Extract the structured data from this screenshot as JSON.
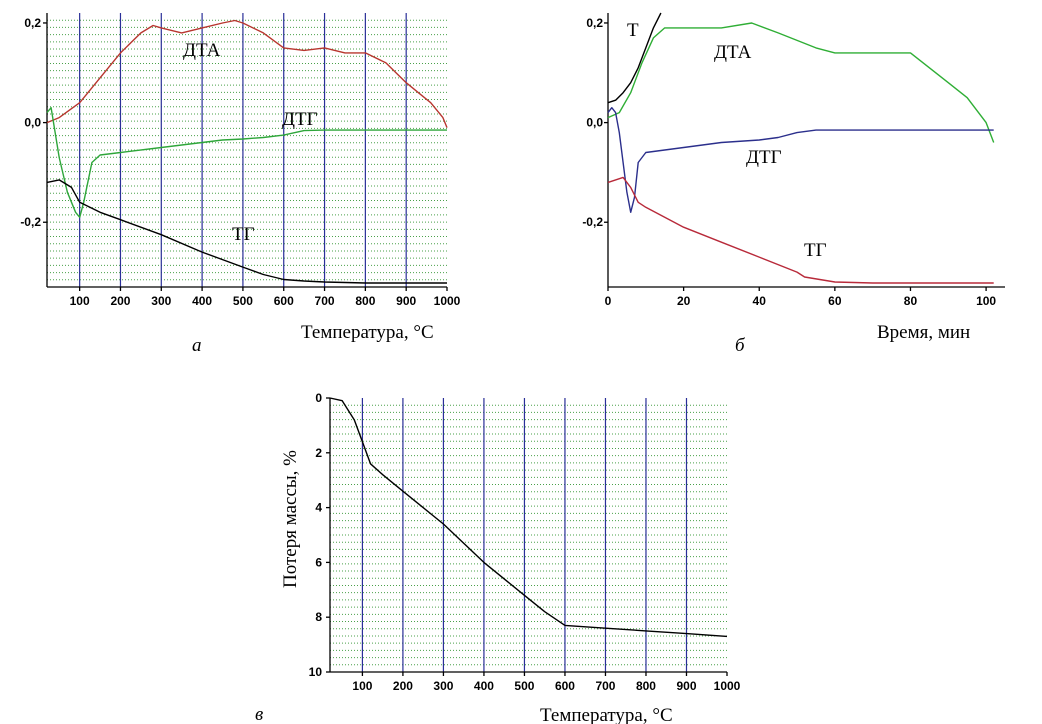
{
  "colors": {
    "dta_a": "#b8362f",
    "dtg_a": "#2ea63a",
    "tg_a": "#000000",
    "t_b": "#000000",
    "dta_b": "#2fae35",
    "dtg_b": "#2b2f8c",
    "tg_b": "#b82a3a",
    "tg_c": "#000000"
  },
  "chart_data": [
    {
      "panel": "а",
      "type": "line",
      "xlabel": "Температура, °C",
      "ylabel": "",
      "xlim": [
        20,
        1000
      ],
      "ylim": [
        -0.33,
        0.22
      ],
      "xticks": [
        "100",
        "200",
        "300",
        "400",
        "500",
        "600",
        "700",
        "800",
        "900",
        "1000"
      ],
      "yticks": [
        "0,2",
        "0,0",
        "-0,2"
      ],
      "grid": true,
      "series": [
        {
          "name": "ДТА",
          "color_key": "dta_a",
          "x": [
            20,
            50,
            100,
            150,
            200,
            250,
            280,
            300,
            350,
            400,
            450,
            480,
            500,
            550,
            600,
            650,
            700,
            750,
            800,
            850,
            900,
            930,
            960,
            990,
            1000
          ],
          "y": [
            0.0,
            0.01,
            0.04,
            0.09,
            0.14,
            0.18,
            0.195,
            0.19,
            0.18,
            0.19,
            0.2,
            0.205,
            0.2,
            0.18,
            0.15,
            0.145,
            0.15,
            0.14,
            0.14,
            0.12,
            0.08,
            0.06,
            0.04,
            0.01,
            -0.01
          ]
        },
        {
          "name": "ДТГ",
          "color_key": "dtg_a",
          "x": [
            20,
            30,
            50,
            70,
            90,
            100,
            110,
            130,
            150,
            200,
            300,
            400,
            450,
            500,
            550,
            600,
            650,
            700,
            800,
            900,
            1000
          ],
          "y": [
            0.02,
            0.03,
            -0.07,
            -0.14,
            -0.18,
            -0.19,
            -0.16,
            -0.08,
            -0.065,
            -0.06,
            -0.05,
            -0.04,
            -0.035,
            -0.033,
            -0.03,
            -0.025,
            -0.016,
            -0.015,
            -0.015,
            -0.015,
            -0.015
          ]
        },
        {
          "name": "ТГ",
          "color_key": "tg_a",
          "x": [
            20,
            50,
            80,
            100,
            150,
            200,
            300,
            400,
            500,
            550,
            600,
            650,
            700,
            800,
            900,
            1000
          ],
          "y": [
            -0.12,
            -0.115,
            -0.13,
            -0.16,
            -0.18,
            -0.195,
            -0.225,
            -0.26,
            -0.29,
            -0.305,
            -0.315,
            -0.318,
            -0.32,
            -0.322,
            -0.322,
            -0.322
          ]
        }
      ]
    },
    {
      "panel": "б",
      "type": "line",
      "xlabel": "Время, мин",
      "ylabel": "",
      "xlim": [
        0,
        105
      ],
      "ylim": [
        -0.33,
        0.22
      ],
      "xticks": [
        "0",
        "20",
        "40",
        "60",
        "80",
        "100"
      ],
      "yticks": [
        "0,2",
        "0,0",
        "-0,2"
      ],
      "grid": false,
      "series": [
        {
          "name": "Т",
          "color_key": "t_b",
          "x": [
            0,
            2,
            4,
            6,
            8,
            10,
            12,
            14
          ],
          "y": [
            0.04,
            0.045,
            0.06,
            0.08,
            0.11,
            0.15,
            0.19,
            0.22
          ]
        },
        {
          "name": "ДТА",
          "color_key": "dta_b",
          "x": [
            0,
            3,
            6,
            9,
            12,
            15,
            20,
            30,
            38,
            45,
            55,
            60,
            70,
            80,
            85,
            90,
            95,
            98,
            100,
            102
          ],
          "y": [
            0.01,
            0.02,
            0.06,
            0.12,
            0.17,
            0.19,
            0.19,
            0.19,
            0.2,
            0.18,
            0.15,
            0.14,
            0.14,
            0.14,
            0.11,
            0.08,
            0.05,
            0.02,
            0.0,
            -0.04
          ]
        },
        {
          "name": "ДТГ",
          "color_key": "dtg_b",
          "x": [
            0,
            1,
            2,
            3,
            4,
            5,
            6,
            7,
            8,
            10,
            15,
            20,
            30,
            40,
            45,
            50,
            55,
            60,
            70,
            80,
            90,
            102
          ],
          "y": [
            0.02,
            0.03,
            0.02,
            -0.02,
            -0.08,
            -0.14,
            -0.18,
            -0.15,
            -0.08,
            -0.06,
            -0.055,
            -0.05,
            -0.04,
            -0.035,
            -0.03,
            -0.02,
            -0.015,
            -0.015,
            -0.015,
            -0.015,
            -0.015,
            -0.015
          ]
        },
        {
          "name": "ТГ",
          "color_key": "tg_b",
          "x": [
            0,
            2,
            4,
            6,
            8,
            10,
            15,
            20,
            30,
            40,
            50,
            52,
            60,
            70,
            80,
            90,
            102
          ],
          "y": [
            -0.12,
            -0.115,
            -0.11,
            -0.13,
            -0.16,
            -0.17,
            -0.19,
            -0.21,
            -0.24,
            -0.27,
            -0.3,
            -0.31,
            -0.32,
            -0.322,
            -0.322,
            -0.322,
            -0.322
          ]
        }
      ]
    },
    {
      "panel": "в",
      "type": "line",
      "xlabel": "Температура, °C",
      "ylabel": "Потеря массы, %",
      "xlim": [
        20,
        1000
      ],
      "ylim": [
        0,
        10
      ],
      "y_inverted": true,
      "xticks": [
        "100",
        "200",
        "300",
        "400",
        "500",
        "600",
        "700",
        "800",
        "900",
        "1000"
      ],
      "yticks": [
        "0",
        "2",
        "4",
        "6",
        "8",
        "10"
      ],
      "grid": true,
      "series": [
        {
          "name": "",
          "color_key": "tg_c",
          "x": [
            20,
            50,
            80,
            100,
            120,
            150,
            200,
            300,
            400,
            500,
            550,
            600,
            650,
            700,
            800,
            900,
            1000
          ],
          "y": [
            0.0,
            0.1,
            0.8,
            1.6,
            2.4,
            2.8,
            3.4,
            4.6,
            6.0,
            7.2,
            7.8,
            8.3,
            8.35,
            8.4,
            8.5,
            8.6,
            8.7
          ]
        }
      ]
    }
  ]
}
